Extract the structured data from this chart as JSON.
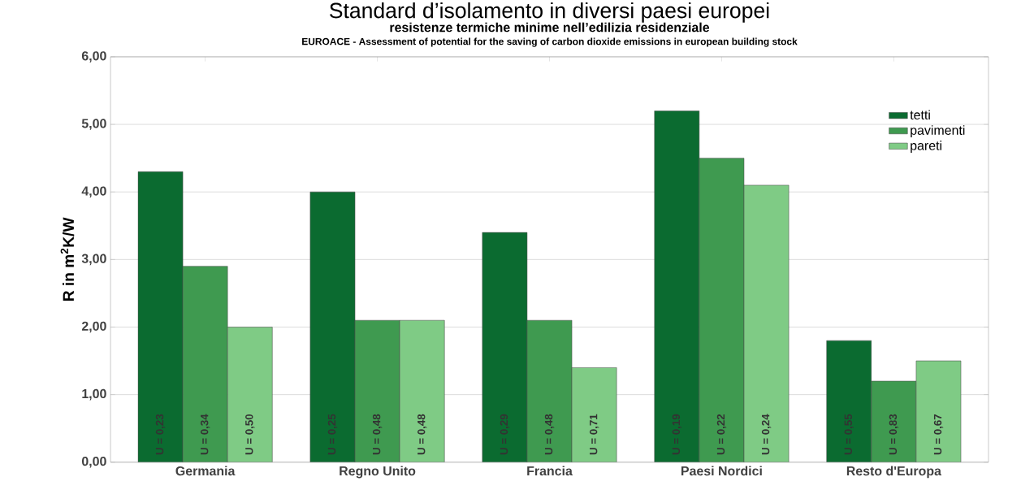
{
  "chart_data": {
    "type": "bar",
    "title": "Standard d’isolamento in diversi paesi europei",
    "subtitle": "resistenze termiche minime nell’edilizia residenziale",
    "annotations": [
      "EUROACE - Assessment of potential for the saving of carbon dioxide emissions in european building stock",
      "U = 0,23",
      "U = 0,25",
      "U = 0,29",
      "U = 0,19",
      "U = 0,55",
      "U = 0,34",
      "U = 0,48",
      "U = 0,48",
      "U = 0,22",
      "U = 0,83",
      "U = 0,50",
      "U = 0,48",
      "U = 0,71",
      "U = 0,24",
      "U = 0,67"
    ],
    "ylabel": "R in m$^{2}$K/W",
    "categories": [
      "Germania",
      "Regno Unito",
      "Francia",
      "Paesi Nordici",
      "Resto d'Europa"
    ],
    "series": [
      {
        "name": "tetti",
        "color": "#0b6b30",
        "values": [
          4.3,
          4.0,
          3.4,
          5.2,
          1.8
        ]
      },
      {
        "name": "pavimenti",
        "color": "#3f9a50",
        "values": [
          2.9,
          2.1,
          2.1,
          4.5,
          1.2
        ]
      },
      {
        "name": "pareti",
        "color": "#7fcb85",
        "values": [
          2.0,
          2.1,
          1.4,
          4.1,
          1.5
        ]
      }
    ],
    "ylim": [
      0,
      6
    ],
    "yticks": [
      {
        "value": 0,
        "label": "0,00"
      },
      {
        "value": 1,
        "label": "1,00"
      },
      {
        "value": 2,
        "label": "2,00"
      },
      {
        "value": 3,
        "label": "3,00"
      },
      {
        "value": 4,
        "label": "4,00"
      },
      {
        "value": 5,
        "label": "5,00"
      },
      {
        "value": 6,
        "label": "6,00"
      }
    ],
    "grid": "y",
    "legend": "top right"
  }
}
